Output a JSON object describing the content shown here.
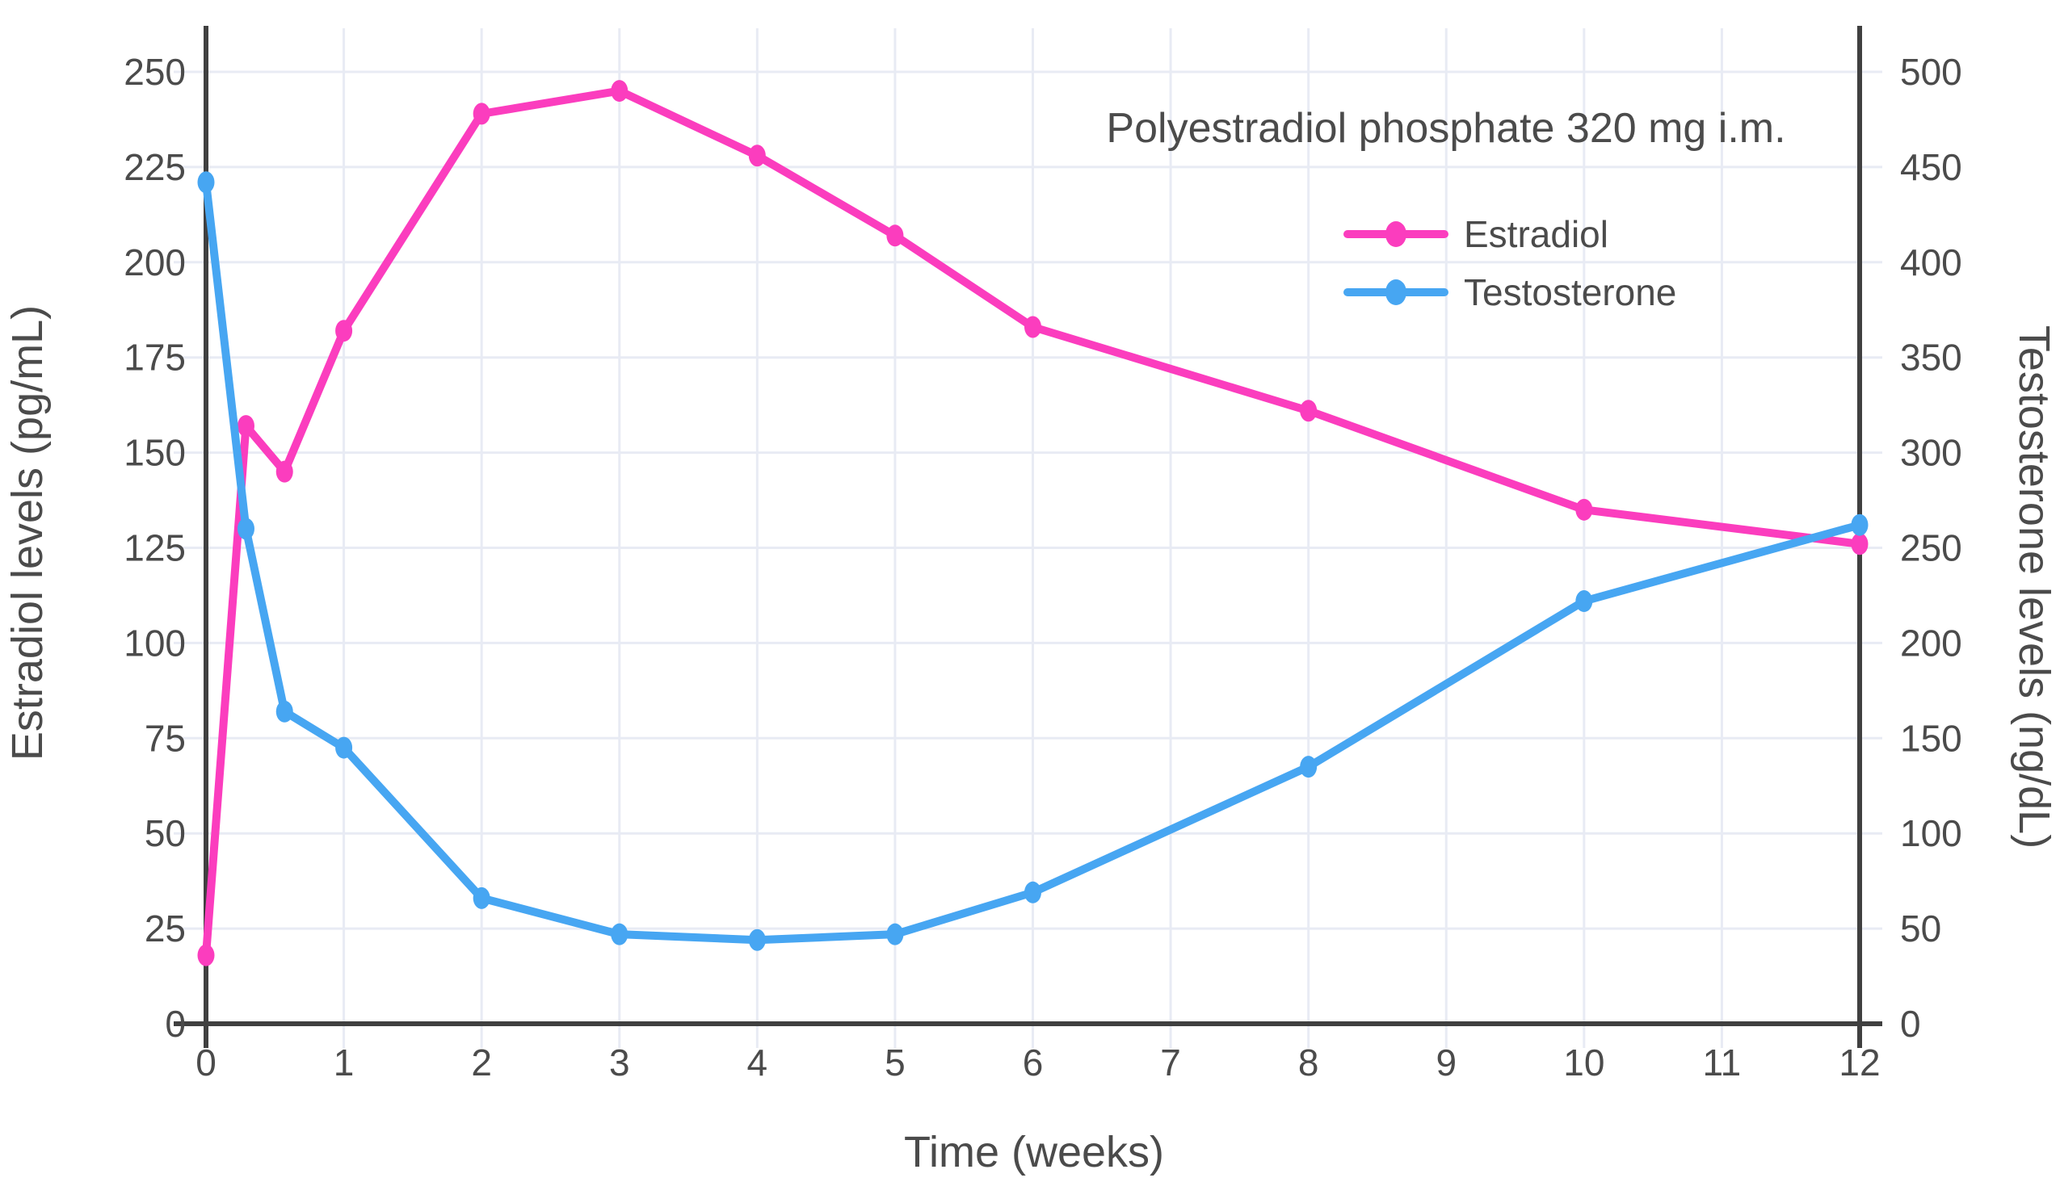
{
  "chart_data": {
    "type": "line",
    "title": "Polyestradiol phosphate 320 mg i.m.",
    "xlabel": "Time (weeks)",
    "ylabel_left": "Estradiol levels (pg/mL)",
    "ylabel_right": "Testosterone levels (ng/dL)",
    "x_axis": {
      "min": 0,
      "max": 12,
      "ticks": [
        0,
        1,
        2,
        3,
        4,
        5,
        6,
        7,
        8,
        9,
        10,
        11,
        12
      ]
    },
    "y_axis_left": {
      "min": 0,
      "max": 261,
      "ticks": [
        0,
        25,
        50,
        75,
        100,
        125,
        150,
        175,
        200,
        225,
        250
      ]
    },
    "y_axis_right": {
      "min": 0,
      "max": 522,
      "ticks": [
        0,
        50,
        100,
        150,
        200,
        250,
        300,
        350,
        400,
        450,
        500
      ]
    },
    "grid": true,
    "legend_position": "top-right",
    "series": [
      {
        "name": "Estradiol",
        "axis": "left",
        "unit": "pg/mL",
        "color": "#fb3dbe",
        "x": [
          0,
          0.29,
          0.57,
          1,
          2,
          3,
          4,
          5,
          6,
          8,
          10,
          12
        ],
        "y": [
          18,
          157,
          145,
          182,
          239,
          245,
          228,
          207,
          183,
          161,
          135,
          126
        ]
      },
      {
        "name": "Testosterone",
        "axis": "right",
        "unit": "ng/dL",
        "color": "#47a6f2",
        "x": [
          0,
          0.29,
          0.57,
          1,
          2,
          3,
          4,
          5,
          6,
          8,
          10,
          12
        ],
        "y": [
          442,
          260,
          164,
          145,
          66,
          47,
          44,
          47,
          69,
          135,
          222,
          262
        ]
      }
    ],
    "colors": {
      "axis_line": "#404040",
      "grid_line": "#e8ebf4",
      "text": "#4b4b4b",
      "background": "#ffffff"
    }
  }
}
